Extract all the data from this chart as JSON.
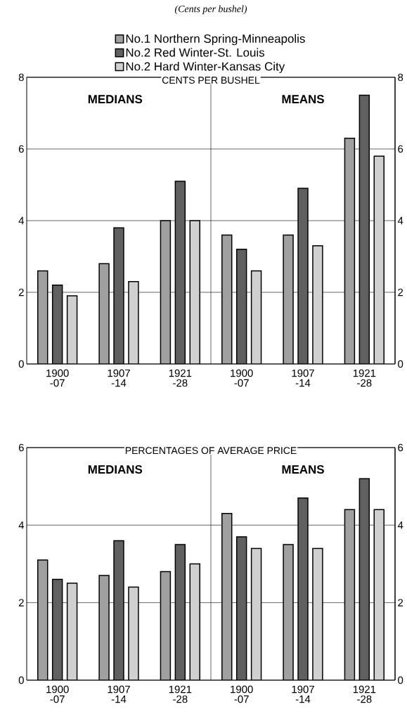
{
  "chart_data": [
    {
      "type": "bar",
      "title": "CENTS PER BUSHEL",
      "subtitle": "*(Cents per bushel)*",
      "categories": [
        "1900 -07",
        "1907 -14",
        "1921 -28",
        "1900 -07",
        "1907 -14",
        "1921 -28"
      ],
      "series": [
        {
          "name": "No.1 Northern Spring-Minneapolis",
          "color": "#a0a0a0",
          "values": [
            2.6,
            2.8,
            4.0,
            3.6,
            3.6,
            6.3
          ]
        },
        {
          "name": "No.2 Red Winter-St. Louis",
          "color": "#606060",
          "values": [
            2.2,
            3.8,
            5.1,
            3.2,
            4.9,
            7.5
          ]
        },
        {
          "name": "No.2 Hard Winter-Kansas City",
          "color": "#d0d0d0",
          "values": [
            1.9,
            2.3,
            4.0,
            2.6,
            3.3,
            5.8
          ]
        }
      ],
      "ylim": [
        0,
        8
      ],
      "yticks": [
        0,
        2,
        4,
        6,
        8
      ],
      "y2lim": [
        0,
        8
      ],
      "y2ticks": [
        0,
        2,
        4,
        6,
        8
      ],
      "grid": "y",
      "legend": "top",
      "annotations": [
        "MEDIANS",
        "MEANS"
      ]
    },
    {
      "type": "bar",
      "title": "PERCENTAGES OF AVERAGE PRICE",
      "categories": [
        "1900 -07",
        "1907 -14",
        "1921 -28",
        "1900 -07",
        "1907 -14",
        "1921 -28"
      ],
      "series": [
        {
          "color": "#a0a0a0",
          "values": [
            3.1,
            2.7,
            2.8,
            4.3,
            3.5,
            4.4
          ]
        },
        {
          "color": "#606060",
          "values": [
            2.6,
            3.6,
            3.5,
            3.7,
            4.7,
            5.2
          ]
        },
        {
          "color": "#d0d0d0",
          "values": [
            2.5,
            2.4,
            3.0,
            3.4,
            3.4,
            4.4
          ]
        }
      ],
      "ylim": [
        0,
        6
      ],
      "yticks": [
        0,
        2,
        4,
        6
      ],
      "y2lim": [
        0,
        6
      ],
      "y2ticks": [
        0,
        2,
        4,
        6
      ],
      "grid": "y",
      "annotations": [
        "MEDIANS",
        "MEANS"
      ]
    }
  ]
}
